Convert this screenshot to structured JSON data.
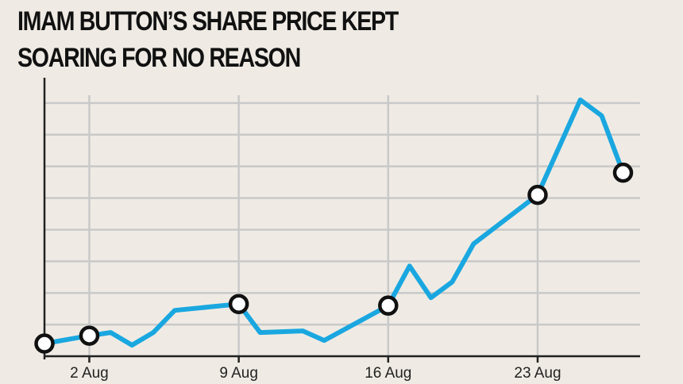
{
  "title_lines": [
    "IMAM BUTTON’S SHARE PRICE KEPT",
    "SOARING FOR NO REASON"
  ],
  "colors": {
    "background": "#efebe4",
    "line": "#1aa7e0",
    "grid": "#c9c9c9",
    "axis": "#222222",
    "marker_fill": "#ffffff",
    "marker_stroke": "#111111"
  },
  "chart_data": {
    "type": "line",
    "title": "IMAM BUTTON’S SHARE PRICE KEPT SOARING FOR NO REASON",
    "xlabel": "",
    "ylabel": "",
    "x_tick_labels": [
      "2 Aug",
      "9 Aug",
      "16 Aug",
      "23 Aug"
    ],
    "x_tick_days": [
      2,
      9,
      16,
      23
    ],
    "xlim": [
      -0.1,
      27.8
    ],
    "ylim": [
      0,
      8.8
    ],
    "grid": true,
    "y_gridlines": [
      0,
      1,
      2,
      3,
      4,
      5,
      6,
      7,
      8
    ],
    "series": [
      {
        "x": [
          -0.1,
          2,
          3,
          4,
          5,
          6,
          9,
          10,
          12,
          13,
          16,
          17,
          18,
          19,
          20,
          23,
          25,
          26,
          27
        ],
        "y": [
          0.4,
          0.65,
          0.75,
          0.35,
          0.75,
          1.45,
          1.65,
          0.75,
          0.8,
          0.5,
          1.6,
          2.85,
          1.85,
          2.35,
          3.55,
          5.1,
          8.1,
          7.6,
          5.8
        ]
      }
    ],
    "markers_at_x": [
      -0.1,
      2,
      9,
      16,
      23,
      27
    ]
  }
}
